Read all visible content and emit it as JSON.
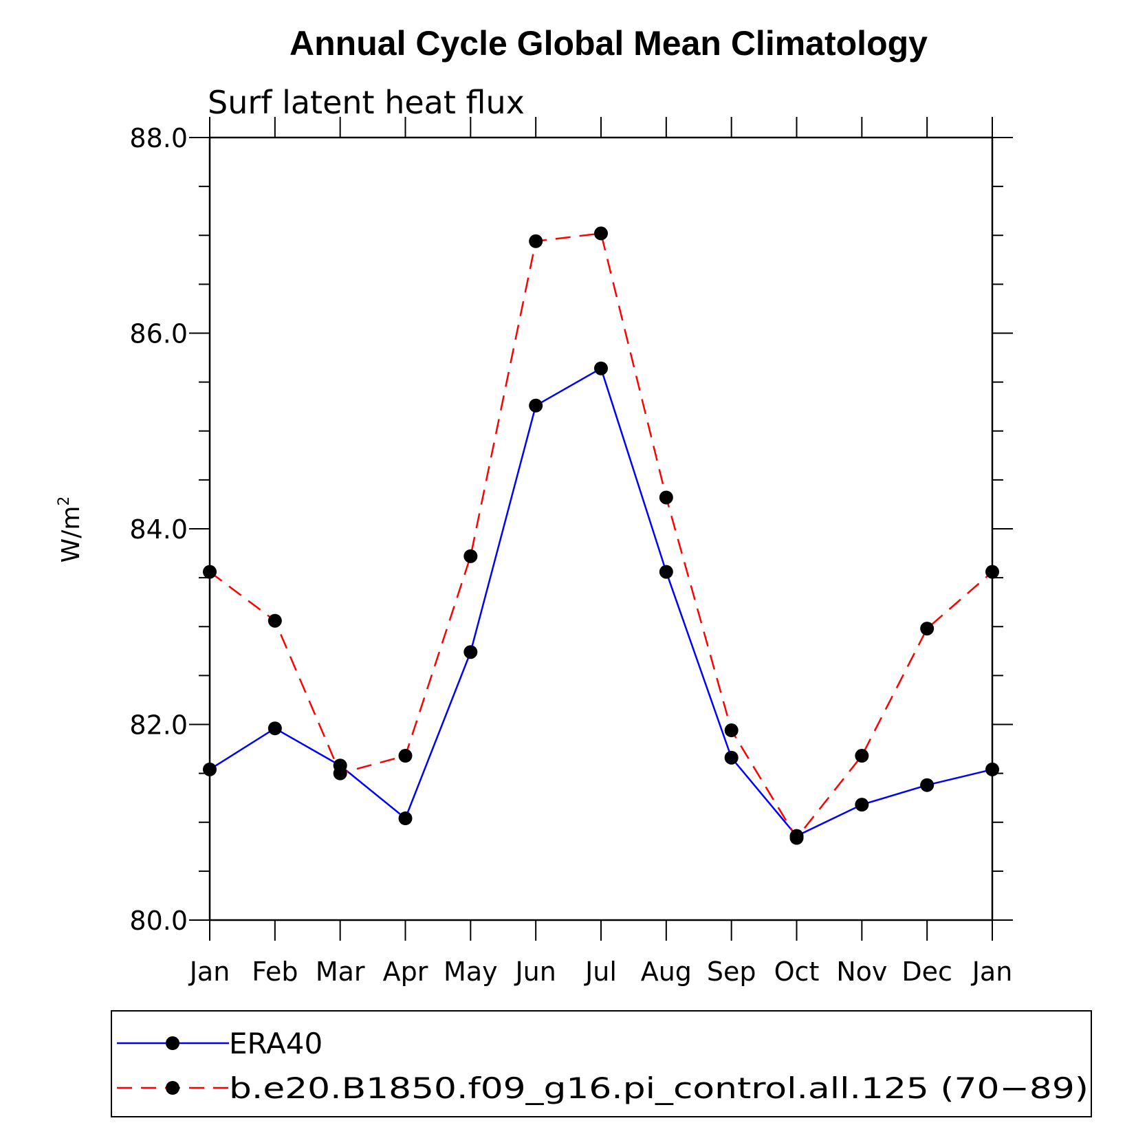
{
  "chart_data": {
    "type": "line",
    "title": "Annual Cycle Global Mean Climatology",
    "subtitle": "Surf latent heat flux",
    "ylabel": "W/m",
    "ylabel_superscript": "2",
    "xlabel": "",
    "ylim": [
      80.0,
      88.0
    ],
    "y_ticks": [
      "80.0",
      "82.0",
      "84.0",
      "86.0",
      "88.0"
    ],
    "categories": [
      "Jan",
      "Feb",
      "Mar",
      "Apr",
      "May",
      "Jun",
      "Jul",
      "Aug",
      "Sep",
      "Oct",
      "Nov",
      "Dec",
      "Jan"
    ],
    "series": [
      {
        "name": "ERA40",
        "color": "#0000ff",
        "style": "solid",
        "values": [
          81.54,
          81.96,
          81.58,
          81.04,
          82.74,
          85.26,
          85.64,
          83.56,
          81.66,
          80.86,
          81.18,
          81.38,
          81.54
        ]
      },
      {
        "name": "b.e20.B1850.f09_g16.pi_control.all.125 (70−89)",
        "color": "#ff0000",
        "style": "dashed",
        "values": [
          83.56,
          83.06,
          81.5,
          81.68,
          83.72,
          86.94,
          87.02,
          84.32,
          81.94,
          80.84,
          81.68,
          82.98,
          83.56
        ]
      }
    ],
    "legend_position": "bottom",
    "marker": "filled-circle",
    "marker_color": "#000000"
  }
}
